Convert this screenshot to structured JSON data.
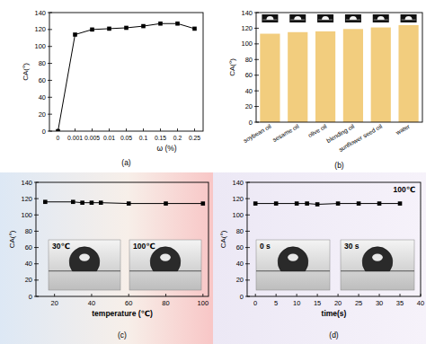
{
  "chart_data": [
    {
      "type": "line",
      "title": "(a)",
      "x_label": "ω (%)",
      "y_label": "CA(°)",
      "categories": [
        "0",
        "0.001",
        "0.005",
        "0.01",
        "0.05",
        "0.1",
        "0.15",
        "0.2",
        "0.25"
      ],
      "values": [
        0,
        114,
        120,
        121,
        122,
        124,
        127,
        127,
        121
      ],
      "ylim": [
        0,
        140
      ],
      "yticks": [
        0,
        20,
        40,
        60,
        80,
        100,
        120,
        140
      ],
      "color": "#000000",
      "marker": "square",
      "line_style": "solid"
    },
    {
      "type": "bar",
      "title": "(b)",
      "y_label": "CA(°)",
      "categories": [
        "soybean oil",
        "sesame oil",
        "olive oil",
        "blending oil",
        "sunflower seed oil",
        "water"
      ],
      "values": [
        113,
        115,
        116,
        119,
        121,
        124
      ],
      "ylim": [
        0,
        140
      ],
      "yticks": [
        0,
        20,
        40,
        60,
        80,
        100,
        120,
        140
      ],
      "color": "#f2cd7e"
    },
    {
      "type": "line",
      "title": "(c)",
      "x_label": "temperature (℃)",
      "y_label": "CA(°)",
      "x": [
        15,
        30,
        35,
        40,
        45,
        60,
        80,
        100
      ],
      "values": [
        116,
        116,
        115,
        115,
        115,
        114,
        114,
        114
      ],
      "xlim": [
        10,
        103
      ],
      "xticks": [
        20,
        40,
        60,
        80,
        100
      ],
      "ylim": [
        0,
        140
      ],
      "yticks": [
        0,
        20,
        40,
        60,
        80,
        100,
        120,
        140
      ],
      "annotations": [
        "30℃",
        "100℃"
      ],
      "color": "#000000",
      "marker": "square",
      "line_style": "solid"
    },
    {
      "type": "line",
      "title": "(d)",
      "x_label": "time(s)",
      "y_label": "CA(°)",
      "x": [
        0,
        5,
        10,
        12.5,
        15,
        20,
        25,
        30,
        35
      ],
      "values": [
        114,
        114,
        114,
        114,
        113,
        114,
        114,
        114,
        114
      ],
      "xlim": [
        -2,
        40
      ],
      "xticks": [
        0,
        5,
        10,
        15,
        20,
        25,
        30,
        35,
        40
      ],
      "ylim": [
        0,
        140
      ],
      "yticks": [
        0,
        20,
        40,
        60,
        80,
        100,
        120,
        140
      ],
      "annotations": [
        "100℃",
        "0 s",
        "30 s"
      ],
      "color": "#000000",
      "marker": "square",
      "line_style": "solid"
    }
  ]
}
